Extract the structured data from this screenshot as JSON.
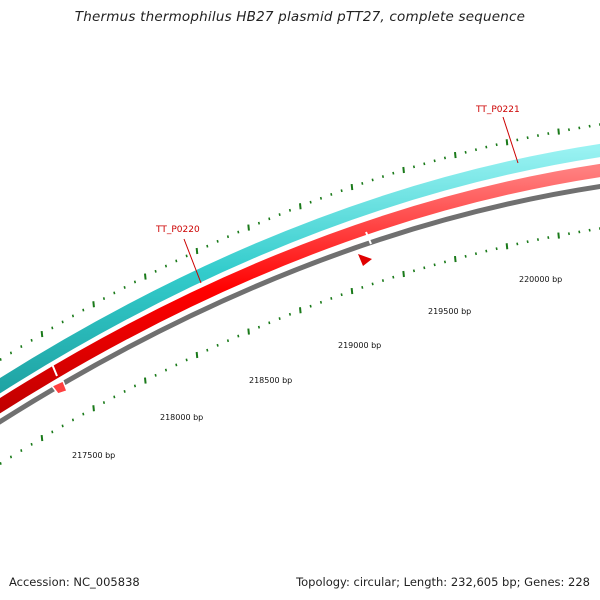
{
  "title": "Thermus thermophilus HB27 plasmid pTT27, complete sequence",
  "footer": {
    "accession": "Accession: NC_005838",
    "summary": "Topology: circular; Length: 232,605 bp; Genes: 228"
  },
  "genes": [
    {
      "label": "TT_P0220"
    },
    {
      "label": "TT_P0221"
    }
  ],
  "bp_labels": [
    "217500 bp",
    "218000 bp",
    "218500 bp",
    "219000 bp",
    "219500 bp",
    "220000 bp"
  ],
  "colors": {
    "forward_track": "#33cccc",
    "reverse_track": "#ff0000",
    "backbone": "#808080",
    "ticks": "#1a7a1a",
    "gene_label": "#cc0000"
  }
}
